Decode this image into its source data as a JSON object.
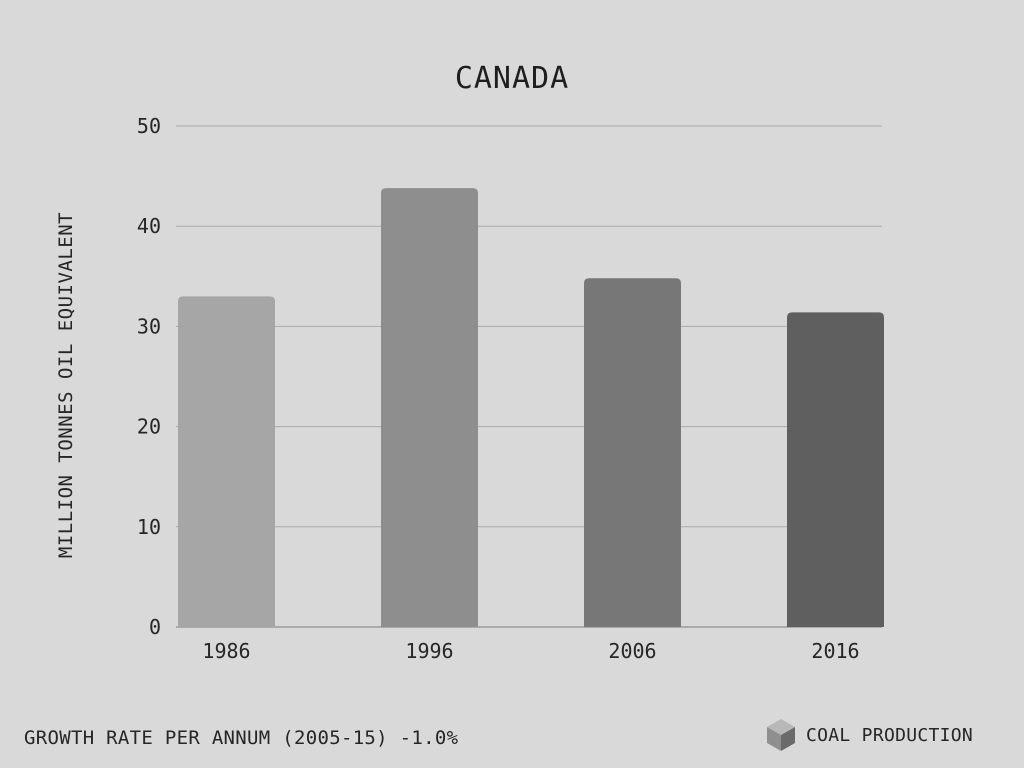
{
  "chart_data": {
    "type": "bar",
    "title": "CANADA",
    "ylabel": "MILLION TONNES OIL EQUIVALENT",
    "xlabel": "",
    "categories": [
      "1986",
      "1996",
      "2006",
      "2016"
    ],
    "values": [
      33.0,
      43.8,
      34.8,
      31.4
    ],
    "bar_colors": [
      "#a6a6a6",
      "#8e8e8e",
      "#777777",
      "#5f5f5f"
    ],
    "ylim": [
      0,
      50
    ],
    "yticks": [
      "0",
      "10",
      "20",
      "30",
      "40",
      "50"
    ],
    "grid": true,
    "legend": {
      "position": "bottom-right",
      "label": "COAL PRODUCTION",
      "icon": "cube-icon"
    }
  },
  "footer": {
    "growth_text": "GROWTH RATE PER ANNUM (2005-15) -1.0%"
  },
  "colors": {
    "background": "#d9d9d9",
    "grid": "#aaaaaa",
    "text": "#1e1e1e"
  }
}
